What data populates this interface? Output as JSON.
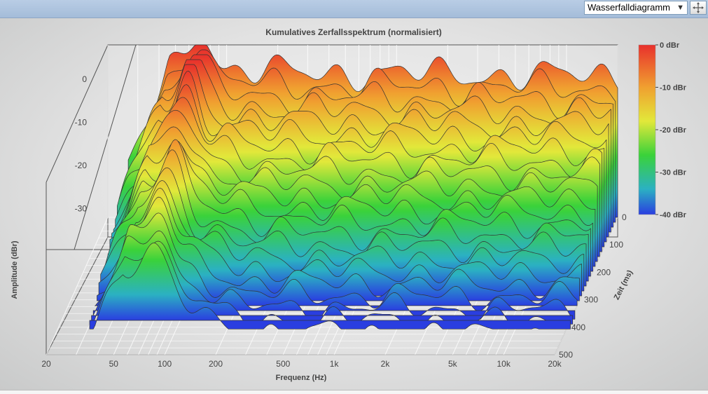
{
  "toolbar": {
    "view_select_value": "Wasserfalldiagramm",
    "move_icon": "move-arrows-icon"
  },
  "chart_data": {
    "type": "waterfall",
    "title": "Kumulatives Zerfallsspektrum (normalisiert)",
    "xlabel": "Frequenz (Hz)",
    "ylabel": "Amplitude (dBr)",
    "zlabel": "Zeit (ms)",
    "x_scale": "log",
    "x_ticks": [
      "20",
      "50",
      "100",
      "200",
      "500",
      "1k",
      "2k",
      "5k",
      "10k",
      "20k"
    ],
    "y_ticks": [
      "0",
      "-10",
      "-20",
      "-30"
    ],
    "z_ticks": [
      "0",
      "100",
      "200",
      "300",
      "400",
      "500"
    ],
    "xlim": [
      20,
      20000
    ],
    "ylim": [
      -40,
      0
    ],
    "zlim": [
      0,
      500
    ],
    "colorbar": {
      "labels": [
        "0 dBr",
        "-10 dBr",
        "-20 dBr",
        "-30 dBr",
        "-40 dBr"
      ],
      "colors": [
        "#e8302c",
        "#f0a030",
        "#e2e83a",
        "#3ad23a",
        "#2bb1c2",
        "#2a3ee0"
      ]
    }
  }
}
